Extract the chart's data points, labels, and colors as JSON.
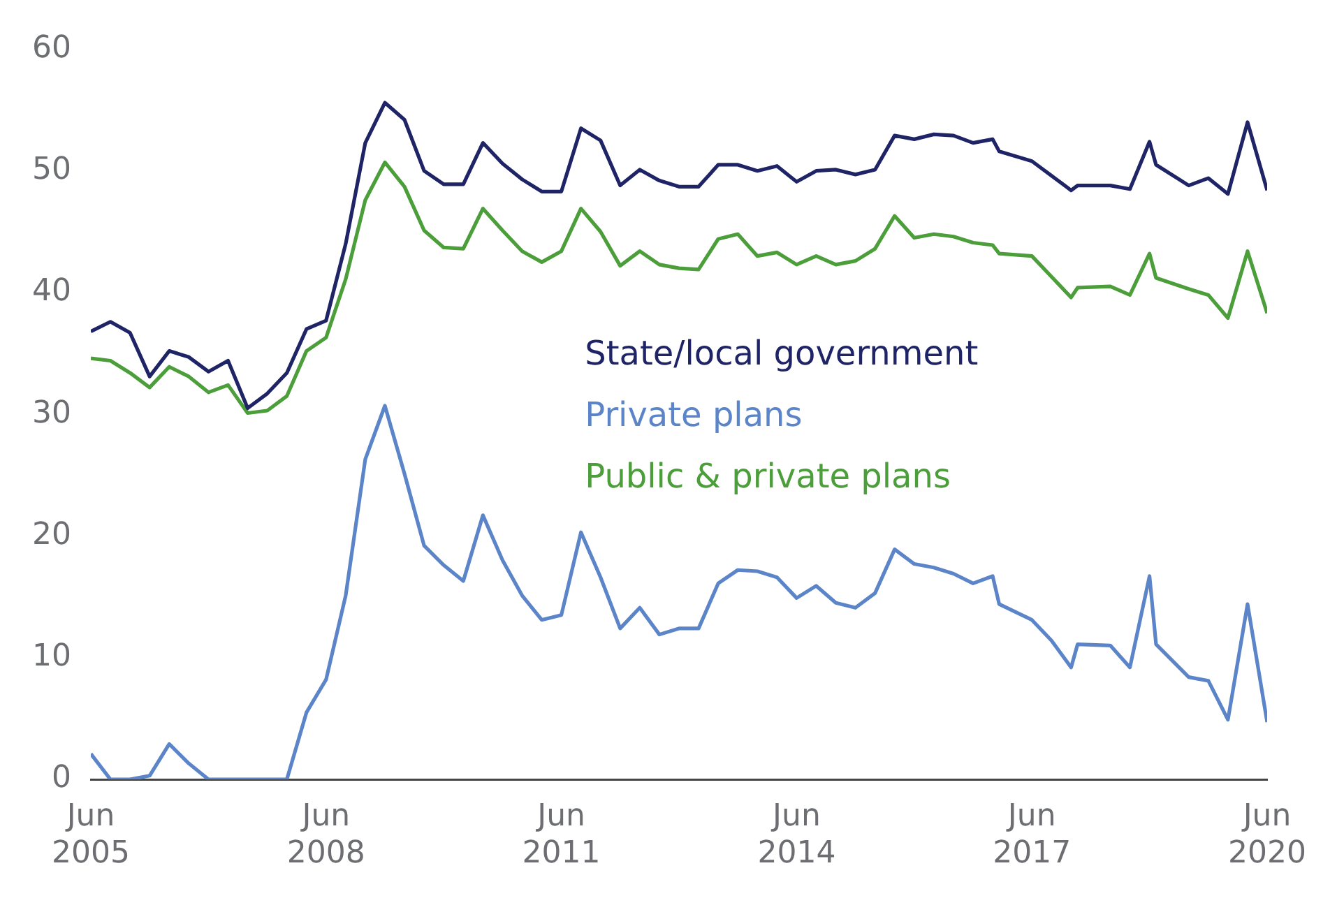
{
  "chart_data": {
    "type": "line",
    "x": [
      "2005-06",
      "2005-09",
      "2005-12",
      "2006-03",
      "2006-06",
      "2006-09",
      "2006-12",
      "2007-03",
      "2007-06",
      "2007-09",
      "2007-12",
      "2008-03",
      "2008-06",
      "2008-09",
      "2008-12",
      "2009-03",
      "2009-06",
      "2009-09",
      "2009-12",
      "2010-03",
      "2010-06",
      "2010-09",
      "2010-12",
      "2011-03",
      "2011-06",
      "2011-09",
      "2011-12",
      "2012-03",
      "2012-06",
      "2012-09",
      "2012-12",
      "2013-03",
      "2013-06",
      "2013-09",
      "2013-12",
      "2014-03",
      "2014-06",
      "2014-09",
      "2014-12",
      "2015-03",
      "2015-06",
      "2015-09",
      "2015-12",
      "2016-03",
      "2016-06",
      "2016-09",
      "2016-12",
      "2017-01",
      "2017-06",
      "2017-09",
      "2017-12",
      "2018-01",
      "2018-06",
      "2018-09",
      "2018-12",
      "2019-01",
      "2019-06",
      "2019-09",
      "2019-12",
      "2020-03",
      "2020-06"
    ],
    "series": [
      {
        "name": "State/local government",
        "color": "#1f2466",
        "values": [
          36.8,
          37.6,
          36.7,
          33.1,
          35.2,
          34.7,
          33.5,
          34.4,
          30.5,
          31.7,
          33.4,
          37.0,
          37.7,
          44.0,
          52.3,
          55.6,
          54.2,
          50.0,
          48.9,
          48.9,
          52.3,
          50.6,
          49.3,
          48.3,
          48.3,
          53.5,
          52.5,
          48.8,
          50.1,
          49.2,
          48.7,
          48.7,
          50.5,
          50.5,
          50.0,
          50.4,
          49.1,
          50.0,
          50.1,
          49.7,
          50.1,
          52.9,
          52.6,
          53.0,
          52.9,
          52.3,
          52.6,
          51.6,
          50.8,
          49.6,
          48.4,
          48.8,
          48.8,
          48.5,
          52.4,
          50.5,
          48.8,
          49.4,
          48.1,
          54.0,
          48.4
        ]
      },
      {
        "name": "Private plans",
        "color": "#5b85c8",
        "values": [
          2.1,
          0,
          0,
          0.3,
          2.9,
          1.3,
          0,
          0,
          0,
          0,
          0,
          5.5,
          8.2,
          15.1,
          26.3,
          30.7,
          25.1,
          19.2,
          17.6,
          16.3,
          21.7,
          18.0,
          15.1,
          13.1,
          13.5,
          20.3,
          16.6,
          12.4,
          14.1,
          11.9,
          12.4,
          12.4,
          16.1,
          17.2,
          17.1,
          16.6,
          14.9,
          15.9,
          14.5,
          14.1,
          15.3,
          18.9,
          17.7,
          17.4,
          16.9,
          16.1,
          16.7,
          14.4,
          13.1,
          11.4,
          9.2,
          11.1,
          11.0,
          9.2,
          16.7,
          11.1,
          8.4,
          8.1,
          4.9,
          14.4,
          4.7
        ]
      },
      {
        "name": "Public & private plans",
        "color": "#4b9e3a",
        "values": [
          34.6,
          34.4,
          33.4,
          32.2,
          33.9,
          33.1,
          31.8,
          32.4,
          30.1,
          30.3,
          31.5,
          35.2,
          36.3,
          41.1,
          47.6,
          50.7,
          48.7,
          45.1,
          43.7,
          43.6,
          46.9,
          45.1,
          43.4,
          42.5,
          43.4,
          46.9,
          45.0,
          42.2,
          43.4,
          42.3,
          42.0,
          41.9,
          44.4,
          44.8,
          43.0,
          43.3,
          42.3,
          43.0,
          42.3,
          42.6,
          43.6,
          46.3,
          44.5,
          44.8,
          44.6,
          44.1,
          43.9,
          43.2,
          43.0,
          41.3,
          39.6,
          40.4,
          40.5,
          39.8,
          43.2,
          41.2,
          40.3,
          39.8,
          37.9,
          43.4,
          38.3
        ]
      }
    ],
    "xlim": [
      "2005-06",
      "2020-06"
    ],
    "xticks": [
      {
        "value": "2005-06",
        "label": "Jun 2005"
      },
      {
        "value": "2008-06",
        "label": "Jun 2008"
      },
      {
        "value": "2011-06",
        "label": "Jun 2011"
      },
      {
        "value": "2014-06",
        "label": "Jun 2014"
      },
      {
        "value": "2017-06",
        "label": "Jun 2017"
      },
      {
        "value": "2020-06",
        "label": "Jun 2020"
      }
    ],
    "ylim": [
      0,
      60
    ],
    "yticks": [
      0,
      10,
      20,
      30,
      40,
      50,
      60
    ],
    "grid": false,
    "legend": "center",
    "marker": "none",
    "line_style": "solid"
  }
}
